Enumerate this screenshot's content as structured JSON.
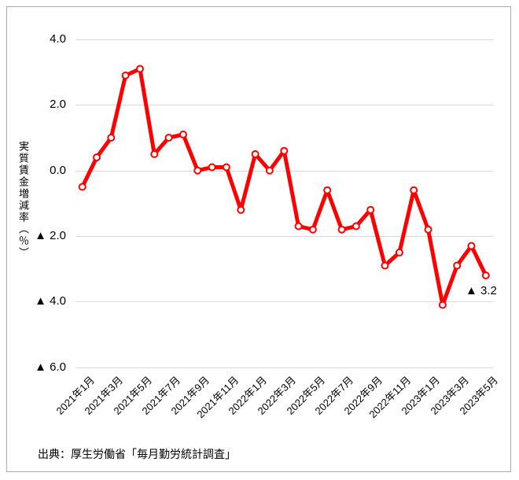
{
  "source_note": "出典：厚生労働省「毎月勤労統計調査」",
  "chart_data": {
    "type": "line",
    "title": "",
    "ylabel": "実質賃金増減率（％）",
    "xlabel": "",
    "grid": "horizontal",
    "legend_position": "none",
    "line_color": "#ff0000",
    "marker_fill": "#ffffff",
    "gridline_color": "#d9d9d9",
    "ylim": [
      -6.0,
      4.0
    ],
    "x": [
      "2021年1月",
      "2021年2月",
      "2021年3月",
      "2021年4月",
      "2021年5月",
      "2021年6月",
      "2021年7月",
      "2021年8月",
      "2021年9月",
      "2021年10月",
      "2021年11月",
      "2021年12月",
      "2022年1月",
      "2022年2月",
      "2022年3月",
      "2022年4月",
      "2022年5月",
      "2022年6月",
      "2022年7月",
      "2022年8月",
      "2022年9月",
      "2022年10月",
      "2022年11月",
      "2022年12月",
      "2023年1月",
      "2023年2月",
      "2023年3月",
      "2023年4月",
      "2023年5月"
    ],
    "values": [
      -0.5,
      0.4,
      1.0,
      2.9,
      3.1,
      0.5,
      1.0,
      1.1,
      0.0,
      0.1,
      0.1,
      -1.2,
      0.5,
      0.0,
      0.6,
      -1.7,
      -1.8,
      -0.6,
      -1.8,
      -1.7,
      -1.2,
      -2.9,
      -2.5,
      -0.6,
      -1.8,
      -4.1,
      -2.9,
      -2.3,
      -3.2
    ],
    "x_tick_labels": [
      "2021年1月",
      "2021年3月",
      "2021年5月",
      "2021年7月",
      "2021年9月",
      "2021年11月",
      "2022年1月",
      "2022年3月",
      "2022年5月",
      "2022年7月",
      "2022年9月",
      "2022年11月",
      "2023年1月",
      "2023年3月",
      "2023年5月"
    ],
    "y_ticks": [
      {
        "value": 4,
        "label": "4.0"
      },
      {
        "value": 2,
        "label": "2.0"
      },
      {
        "value": 0,
        "label": "0.0"
      },
      {
        "value": -2,
        "label": "▲ 2.0"
      },
      {
        "value": -4,
        "label": "▲ 4.0"
      },
      {
        "value": -6,
        "label": "▲ 6.0"
      }
    ],
    "annotation": {
      "label": "▲ 3.2",
      "x": "2023年5月",
      "value": -3.2
    }
  }
}
